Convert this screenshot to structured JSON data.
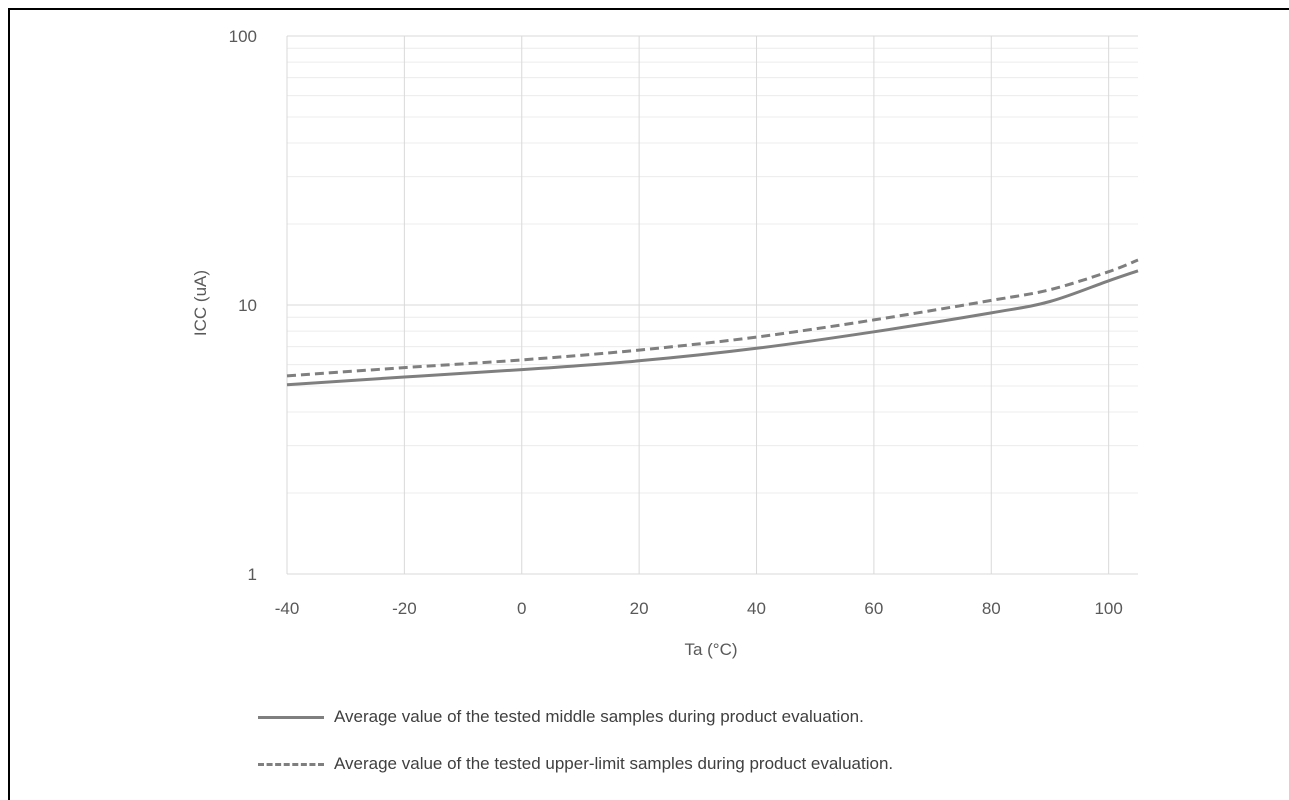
{
  "chart_data": {
    "type": "line",
    "xlabel": "Ta (°C)",
    "ylabel": "ICC (uA)",
    "xlim": [
      -40,
      105
    ],
    "ylim": [
      1,
      100
    ],
    "yscale": "log",
    "x_ticks": [
      "-40",
      "-20",
      "0",
      "20",
      "40",
      "60",
      "80",
      "100"
    ],
    "y_ticks": [
      "1",
      "10",
      "100"
    ],
    "grid": true,
    "legend_position": "bottom",
    "series": [
      {
        "name": "Average value of the tested middle samples during product evaluation.",
        "style": "solid",
        "color": "#7f7f7f",
        "x": [
          -40,
          -20,
          0,
          20,
          40,
          60,
          80,
          90,
          100,
          105
        ],
        "y": [
          5.05,
          5.4,
          5.75,
          6.2,
          6.9,
          7.95,
          9.35,
          10.3,
          12.3,
          13.4
        ]
      },
      {
        "name": "Average value of the tested upper-limit samples during product evaluation.",
        "style": "dashed",
        "color": "#7f7f7f",
        "x": [
          -40,
          -20,
          0,
          20,
          40,
          60,
          80,
          90,
          100,
          105
        ],
        "y": [
          5.45,
          5.85,
          6.25,
          6.8,
          7.6,
          8.8,
          10.4,
          11.4,
          13.3,
          14.7
        ]
      }
    ]
  }
}
